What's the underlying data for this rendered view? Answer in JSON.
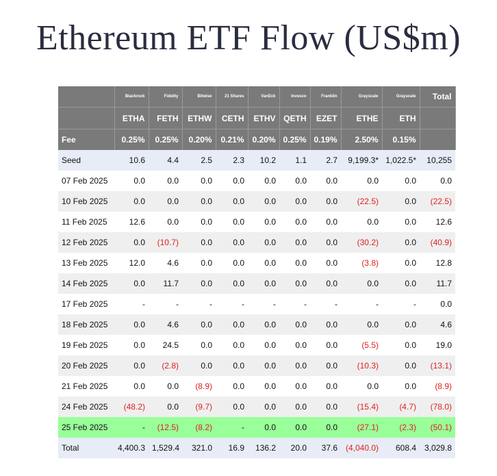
{
  "title": "Ethereum ETF Flow (US$m)",
  "colors": {
    "header_bg": "#7a7a7a",
    "negative": "#e02020",
    "highlight": "#99ff99",
    "seed_bg": "#e7ecf6",
    "stripe": "#efefef"
  },
  "issuers": [
    "Blackrock",
    "Fidelity",
    "Bitwise",
    "21 Shares",
    "VanEck",
    "Invesco",
    "Franklin",
    "Grayscale",
    "Grayscale"
  ],
  "total_header": "Total",
  "tickers": [
    "ETHA",
    "FETH",
    "ETHW",
    "CETH",
    "ETHV",
    "QETH",
    "EZET",
    "ETHE",
    "ETH"
  ],
  "fee_label": "Fee",
  "fees": [
    "0.25%",
    "0.25%",
    "0.20%",
    "0.21%",
    "0.20%",
    "0.25%",
    "0.19%",
    "2.50%",
    "0.15%"
  ],
  "rows": [
    {
      "label": "Seed",
      "values": [
        "10.6",
        "4.4",
        "2.5",
        "2.3",
        "10.2",
        "1.1",
        "2.7",
        "9,199.3*",
        "1,022.5*",
        "10,255"
      ]
    },
    {
      "label": "07 Feb 2025",
      "values": [
        "0.0",
        "0.0",
        "0.0",
        "0.0",
        "0.0",
        "0.0",
        "0.0",
        "0.0",
        "0.0",
        "0.0"
      ]
    },
    {
      "label": "10 Feb 2025",
      "values": [
        "0.0",
        "0.0",
        "0.0",
        "0.0",
        "0.0",
        "0.0",
        "0.0",
        "(22.5)",
        "0.0",
        "(22.5)"
      ]
    },
    {
      "label": "11 Feb 2025",
      "values": [
        "12.6",
        "0.0",
        "0.0",
        "0.0",
        "0.0",
        "0.0",
        "0.0",
        "0.0",
        "0.0",
        "12.6"
      ]
    },
    {
      "label": "12 Feb 2025",
      "values": [
        "0.0",
        "(10.7)",
        "0.0",
        "0.0",
        "0.0",
        "0.0",
        "0.0",
        "(30.2)",
        "0.0",
        "(40.9)"
      ]
    },
    {
      "label": "13 Feb 2025",
      "values": [
        "12.0",
        "4.6",
        "0.0",
        "0.0",
        "0.0",
        "0.0",
        "0.0",
        "(3.8)",
        "0.0",
        "12.8"
      ]
    },
    {
      "label": "14 Feb 2025",
      "values": [
        "0.0",
        "11.7",
        "0.0",
        "0.0",
        "0.0",
        "0.0",
        "0.0",
        "0.0",
        "0.0",
        "11.7"
      ]
    },
    {
      "label": "17 Feb 2025",
      "values": [
        "-",
        "-",
        "-",
        "-",
        "-",
        "-",
        "-",
        "-",
        "-",
        "0.0"
      ]
    },
    {
      "label": "18 Feb 2025",
      "values": [
        "0.0",
        "4.6",
        "0.0",
        "0.0",
        "0.0",
        "0.0",
        "0.0",
        "0.0",
        "0.0",
        "4.6"
      ]
    },
    {
      "label": "19 Feb 2025",
      "values": [
        "0.0",
        "24.5",
        "0.0",
        "0.0",
        "0.0",
        "0.0",
        "0.0",
        "(5.5)",
        "0.0",
        "19.0"
      ]
    },
    {
      "label": "20 Feb 2025",
      "values": [
        "0.0",
        "(2.8)",
        "0.0",
        "0.0",
        "0.0",
        "0.0",
        "0.0",
        "(10.3)",
        "0.0",
        "(13.1)"
      ]
    },
    {
      "label": "21 Feb 2025",
      "values": [
        "0.0",
        "0.0",
        "(8.9)",
        "0.0",
        "0.0",
        "0.0",
        "0.0",
        "0.0",
        "0.0",
        "(8.9)"
      ]
    },
    {
      "label": "24 Feb 2025",
      "values": [
        "(48.2)",
        "0.0",
        "(9.7)",
        "0.0",
        "0.0",
        "0.0",
        "0.0",
        "(15.4)",
        "(4.7)",
        "(78.0)"
      ]
    },
    {
      "label": "25 Feb 2025",
      "values": [
        "-",
        "(12.5)",
        "(8.2)",
        "-",
        "0.0",
        "0.0",
        "0.0",
        "(27.1)",
        "(2.3)",
        "(50.1)"
      ]
    },
    {
      "label": "Total",
      "values": [
        "4,400.3",
        "1,529.4",
        "321.0",
        "16.9",
        "136.2",
        "20.0",
        "37.6",
        "(4,040.0)",
        "608.4",
        "3,029.8"
      ]
    }
  ]
}
